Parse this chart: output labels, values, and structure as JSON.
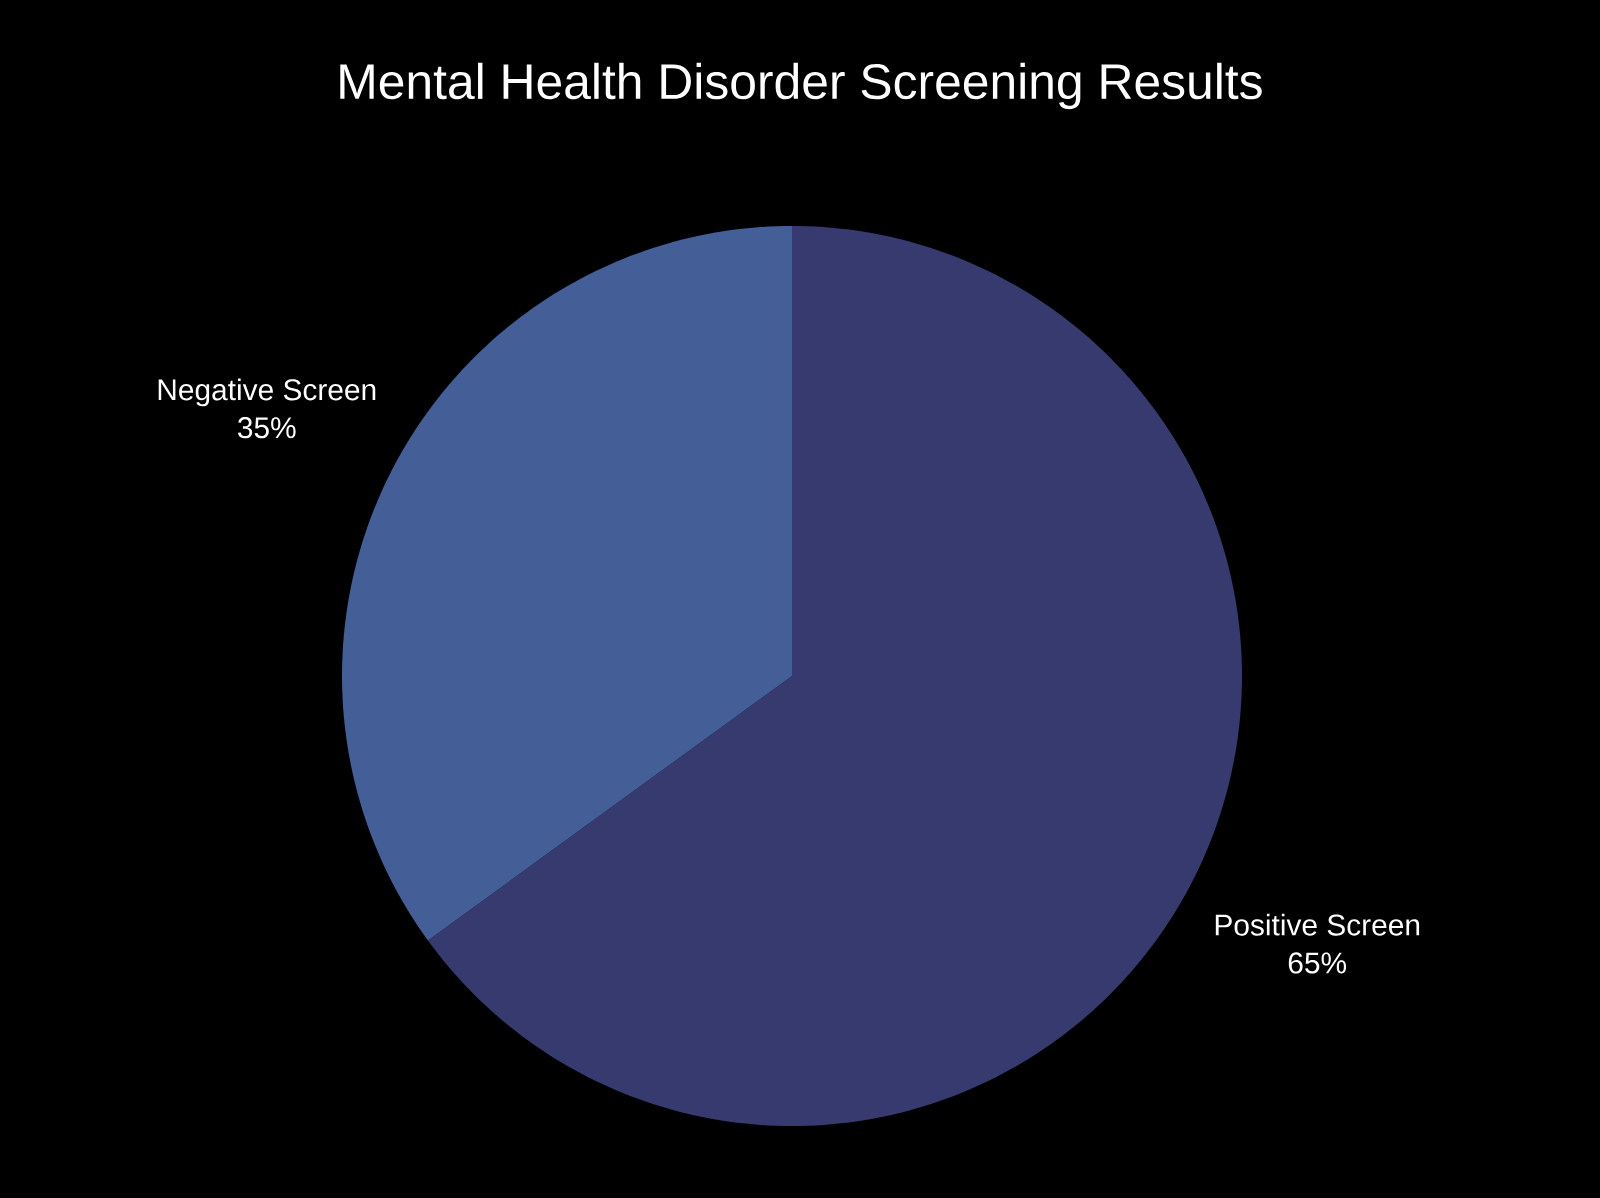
{
  "chart_data": {
    "type": "pie",
    "title": "Mental Health Disorder Screening Results",
    "categories": [
      "Positive Screen",
      "Negative Screen"
    ],
    "values": [
      65,
      35
    ],
    "colors": [
      "#373a6e",
      "#445f98"
    ],
    "value_labels": [
      "65%",
      "35%"
    ]
  }
}
